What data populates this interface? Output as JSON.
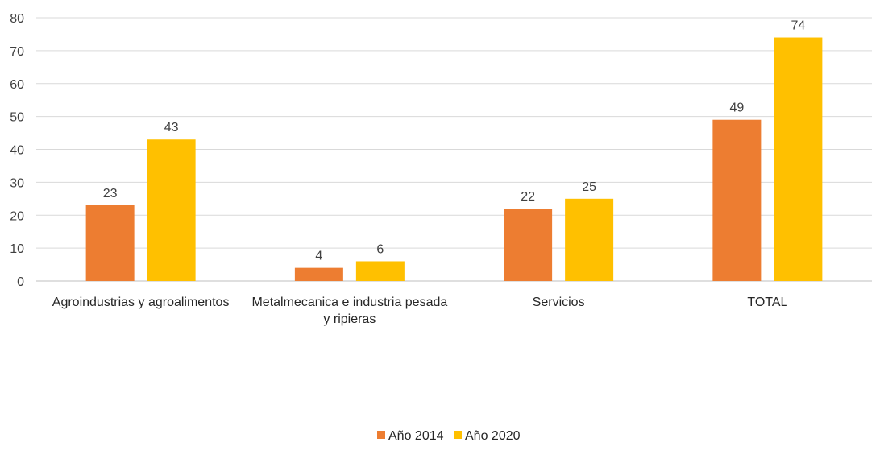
{
  "chart_data": {
    "type": "bar",
    "categories": [
      [
        "Agroindustrias y agroalimentos"
      ],
      [
        "Metalmecanica e industria pesada",
        "y ripieras"
      ],
      [
        "Servicios"
      ],
      [
        "TOTAL"
      ]
    ],
    "series": [
      {
        "name": "Año 2014",
        "values": [
          23,
          4,
          22,
          49
        ],
        "color": "#ED7D31"
      },
      {
        "name": "Año 2020",
        "values": [
          43,
          6,
          25,
          74
        ],
        "color": "#FFC000"
      }
    ],
    "yticks": [
      0,
      10,
      20,
      30,
      40,
      50,
      60,
      70,
      80
    ],
    "ylim": [
      0,
      80
    ],
    "grid": true,
    "legend_position": "bottom",
    "data_labels": true,
    "title": "",
    "xlabel": "",
    "ylabel": ""
  }
}
